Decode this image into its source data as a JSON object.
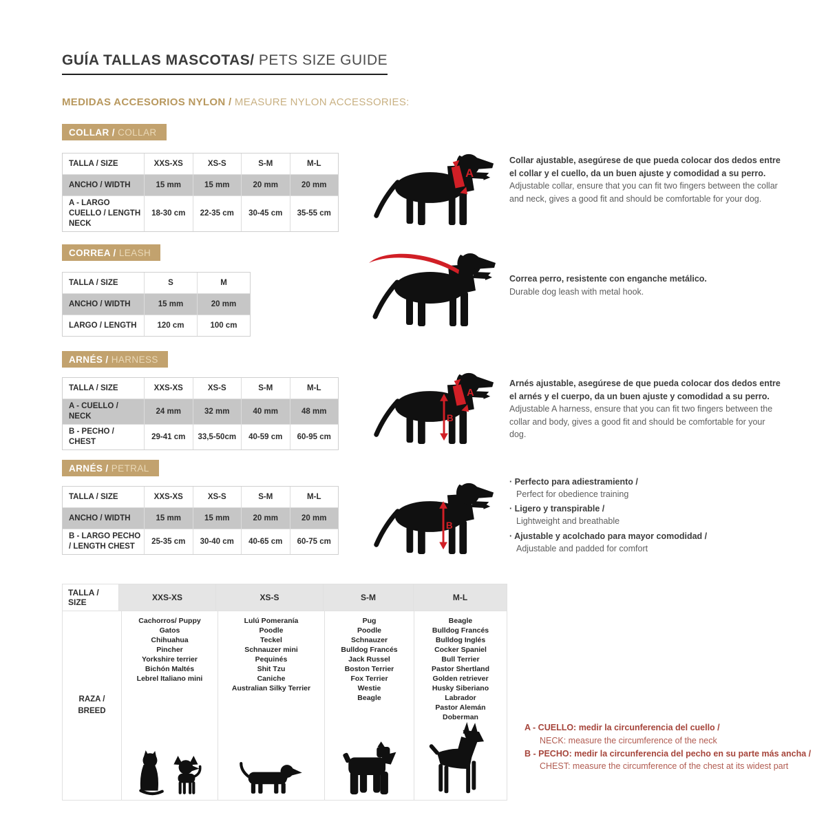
{
  "page": {
    "title_es": "GUÍA TALLAS MASCOTAS/",
    "title_en": " PETS SIZE GUIDE",
    "subtitle_es": "MEDIDAS ACCESORIOS NYLON / ",
    "subtitle_en": "MEASURE NYLON ACCESSORIES:"
  },
  "colors": {
    "accent_tan": "#c2a26e",
    "marker_red": "#d11f26",
    "note_red": "#a6453b",
    "shaded_row_gray": "#c6c6c6"
  },
  "markers": {
    "a": "A",
    "b": "B"
  },
  "sections": {
    "collar": {
      "badge_es": "COLLAR / ",
      "badge_en": "COLLAR",
      "table": {
        "rows": [
          {
            "label": "TALLA / SIZE",
            "values": [
              "XXS-XS",
              "XS-S",
              "S-M",
              "M-L"
            ]
          },
          {
            "label": "ANCHO / WIDTH",
            "values": [
              "15 mm",
              "15 mm",
              "20 mm",
              "20 mm"
            ]
          },
          {
            "label": "A - LARGO CUELLO / LENGTH NECK",
            "values": [
              "18-30 cm",
              "22-35 cm",
              "30-45 cm",
              "35-55 cm"
            ]
          }
        ]
      },
      "desc_es": "Collar ajustable, asegúrese de que pueda colocar dos dedos entre el collar y el cuello, da un buen ajuste y comodidad a su perro.",
      "desc_en": "Adjustable collar, ensure that you can fit two fingers between the collar and neck, gives a good fit and should be comfortable for your dog."
    },
    "leash": {
      "badge_es": "CORREA / ",
      "badge_en": "LEASH",
      "table": {
        "rows": [
          {
            "label": "TALLA / SIZE",
            "values": [
              "S",
              "M"
            ]
          },
          {
            "label": "ANCHO / WIDTH",
            "values": [
              "15 mm",
              "20 mm"
            ]
          },
          {
            "label": "LARGO / LENGTH",
            "values": [
              "120 cm",
              "100 cm"
            ]
          }
        ]
      },
      "desc_es": "Correa perro, resistente con enganche metálico.",
      "desc_en": "Durable dog leash with metal hook."
    },
    "harness": {
      "badge_es": "ARNÉS / ",
      "badge_en": "HARNESS",
      "table": {
        "rows": [
          {
            "label": "TALLA / SIZE",
            "values": [
              "XXS-XS",
              "XS-S",
              "S-M",
              "M-L"
            ]
          },
          {
            "label": "A - CUELLO / NECK",
            "values": [
              "24 mm",
              "32 mm",
              "40 mm",
              "48 mm"
            ]
          },
          {
            "label": "B - PECHO / CHEST",
            "values": [
              "29-41 cm",
              "33,5-50cm",
              "40-59 cm",
              "60-95 cm"
            ]
          }
        ]
      },
      "desc_es": "Arnés ajustable, asegúrese de que pueda colocar dos dedos entre el arnés y el cuerpo, da un buen ajuste y comodidad a su perro.",
      "desc_en": "Adjustable A harness, ensure that you can fit two fingers between the collar and body, gives a good fit and should be comfortable for your dog."
    },
    "petral": {
      "badge_es": "ARNÉS / ",
      "badge_en": "PETRAL",
      "table": {
        "rows": [
          {
            "label": "TALLA / SIZE",
            "values": [
              "XXS-XS",
              "XS-S",
              "S-M",
              "M-L"
            ]
          },
          {
            "label": "ANCHO / WIDTH",
            "values": [
              "15 mm",
              "15 mm",
              "20 mm",
              "20 mm"
            ]
          },
          {
            "label": "B - LARGO PECHO / LENGTH CHEST",
            "values": [
              "25-35 cm",
              "30-40 cm",
              "40-65 cm",
              "60-75 cm"
            ]
          }
        ]
      },
      "bullets": [
        {
          "es": "Perfecto para adiestramiento /",
          "en": "Perfect for obedience training"
        },
        {
          "es": "Ligero y transpirable /",
          "en": "Lightweight and breathable"
        },
        {
          "es": "Ajustable y acolchado para mayor comodidad /",
          "en": "Adjustable and padded for comfort"
        }
      ]
    }
  },
  "breeds": {
    "header_label": "TALLA /  SIZE",
    "sizes": [
      "XXS-XS",
      "XS-S",
      "S-M",
      "M-L"
    ],
    "row_label": "RAZA /\nBREED",
    "col_xxs_xs": [
      "Cachorros/ Puppy",
      "Gatos",
      "Chihuahua",
      "Pincher",
      "Yorkshire terrier",
      "Bichón Maltés",
      "Lebrel Italiano mini"
    ],
    "col_xs_s": [
      "Lulú Pomeranía",
      "Poodle",
      "Teckel",
      "Schnauzer mini",
      "Pequinés",
      "Shit Tzu",
      "Caniche",
      "Australian Silky Terrier"
    ],
    "col_s_m": [
      "Pug",
      "Poodle",
      "Schnauzer",
      "Bulldog Francés",
      "Jack Russel",
      "Boston Terrier",
      "Fox Terrier",
      "Westie",
      "Beagle"
    ],
    "col_m_l": [
      "Beagle",
      "Bulldog Francés",
      "Bulldog Inglés",
      "Cocker Spaniel",
      "Bull Terrier",
      "Pastor Shertland",
      "Golden retriever",
      "Husky Siberiano",
      "Labrador",
      "Pastor Alemán",
      "Doberman"
    ]
  },
  "notes": {
    "a_bold": "A - CUELLO: medir la circunferencia del cuello /",
    "a_reg": "NECK: measure the circumference of the neck",
    "b_bold": "B - PECHO: medir la circunferencia del pecho en su parte más ancha /",
    "b_reg": "CHEST: measure the circumference of the chest at its widest part"
  }
}
